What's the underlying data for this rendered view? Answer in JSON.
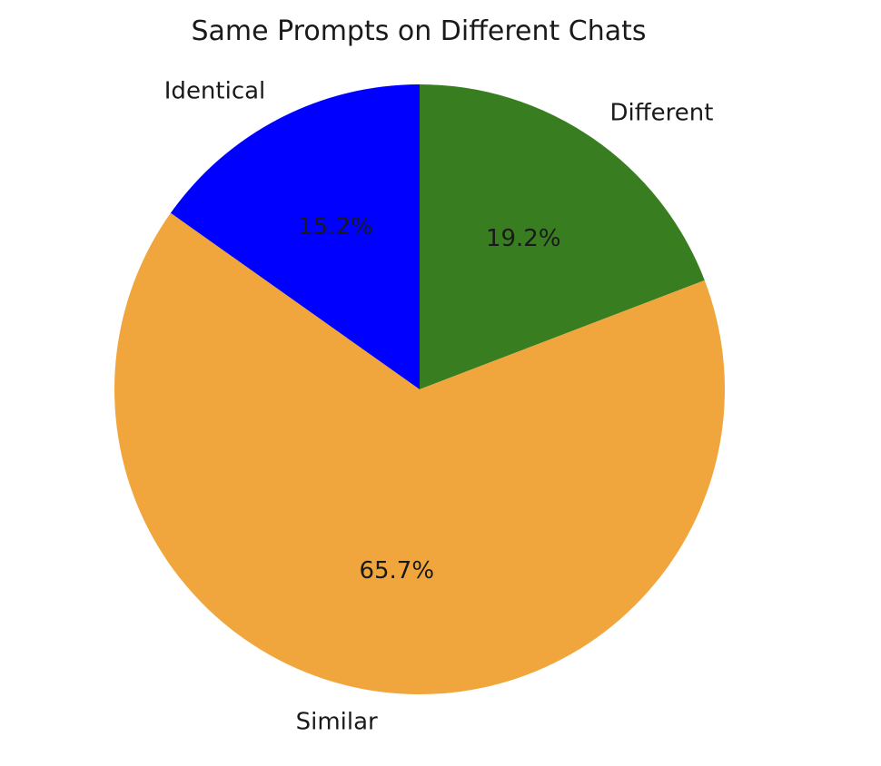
{
  "chart_data": {
    "type": "pie",
    "title": "Same Prompts on Different Chats",
    "slices": [
      {
        "label": "Different",
        "value": 19.2,
        "pct_label": "19.2%",
        "color": "#387e21"
      },
      {
        "label": "Similar",
        "value": 65.7,
        "pct_label": "65.7%",
        "color": "#f0a63c"
      },
      {
        "label": "Identical",
        "value": 15.2,
        "pct_label": "15.2%",
        "color": "#0000ff"
      }
    ],
    "start_angle": 90,
    "direction": "clockwise"
  }
}
